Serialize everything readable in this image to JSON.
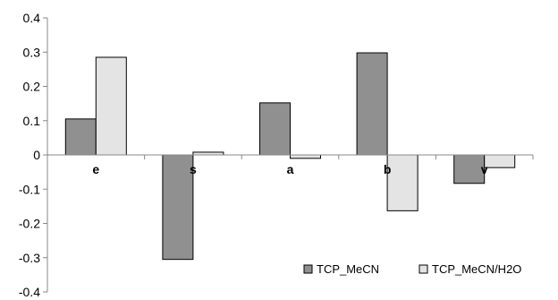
{
  "chart_data": {
    "type": "bar",
    "categories": [
      "e",
      "s",
      "a",
      "b",
      "v"
    ],
    "series": [
      {
        "name": "TCP_MeCN",
        "values": [
          0.105,
          -0.305,
          0.152,
          0.298,
          -0.083
        ],
        "color": "#909090"
      },
      {
        "name": "TCP_MeCN/H2O",
        "values": [
          0.285,
          0.008,
          -0.01,
          -0.163,
          -0.037
        ],
        "color": "#e4e4e4"
      }
    ],
    "title": "",
    "xlabel": "",
    "ylabel": "",
    "ylim": [
      -0.4,
      0.4
    ],
    "yticks": [
      "-0.4",
      "-0.3",
      "-0.2",
      "-0.1",
      "0",
      "0.1",
      "0.2",
      "0.3",
      "0.4"
    ],
    "grid": false,
    "legend_position": "bottom-right"
  }
}
